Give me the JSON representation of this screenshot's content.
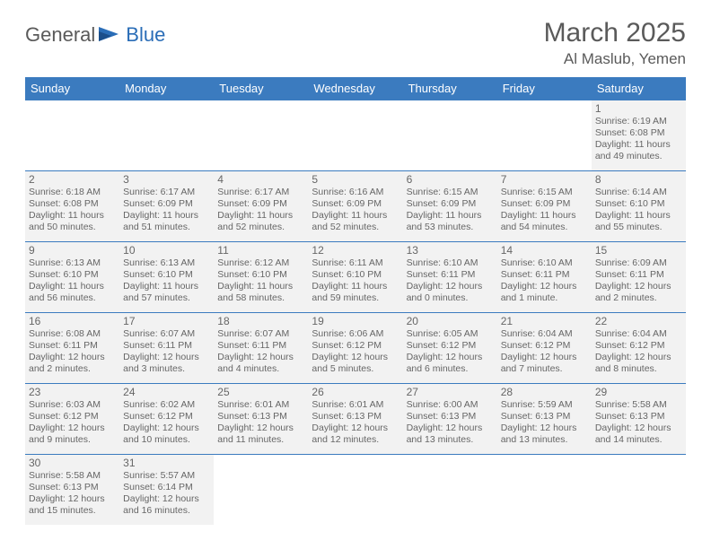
{
  "brand": {
    "part1": "General",
    "part2": "Blue"
  },
  "title": "March 2025",
  "location": "Al Maslub, Yemen",
  "colors": {
    "header_bg": "#3b7bbf",
    "header_fg": "#ffffff",
    "border": "#3b7bbf",
    "shaded_bg": "#f2f2f2",
    "text": "#666666"
  },
  "weekdays": [
    "Sunday",
    "Monday",
    "Tuesday",
    "Wednesday",
    "Thursday",
    "Friday",
    "Saturday"
  ],
  "weeks": [
    [
      {
        "blank": true
      },
      {
        "blank": true
      },
      {
        "blank": true
      },
      {
        "blank": true
      },
      {
        "blank": true
      },
      {
        "blank": true
      },
      {
        "day": "1",
        "sunrise": "Sunrise: 6:19 AM",
        "sunset": "Sunset: 6:08 PM",
        "daylight1": "Daylight: 11 hours",
        "daylight2": "and 49 minutes."
      }
    ],
    [
      {
        "day": "2",
        "sunrise": "Sunrise: 6:18 AM",
        "sunset": "Sunset: 6:08 PM",
        "daylight1": "Daylight: 11 hours",
        "daylight2": "and 50 minutes."
      },
      {
        "day": "3",
        "sunrise": "Sunrise: 6:17 AM",
        "sunset": "Sunset: 6:09 PM",
        "daylight1": "Daylight: 11 hours",
        "daylight2": "and 51 minutes."
      },
      {
        "day": "4",
        "sunrise": "Sunrise: 6:17 AM",
        "sunset": "Sunset: 6:09 PM",
        "daylight1": "Daylight: 11 hours",
        "daylight2": "and 52 minutes."
      },
      {
        "day": "5",
        "sunrise": "Sunrise: 6:16 AM",
        "sunset": "Sunset: 6:09 PM",
        "daylight1": "Daylight: 11 hours",
        "daylight2": "and 52 minutes."
      },
      {
        "day": "6",
        "sunrise": "Sunrise: 6:15 AM",
        "sunset": "Sunset: 6:09 PM",
        "daylight1": "Daylight: 11 hours",
        "daylight2": "and 53 minutes."
      },
      {
        "day": "7",
        "sunrise": "Sunrise: 6:15 AM",
        "sunset": "Sunset: 6:09 PM",
        "daylight1": "Daylight: 11 hours",
        "daylight2": "and 54 minutes."
      },
      {
        "day": "8",
        "sunrise": "Sunrise: 6:14 AM",
        "sunset": "Sunset: 6:10 PM",
        "daylight1": "Daylight: 11 hours",
        "daylight2": "and 55 minutes."
      }
    ],
    [
      {
        "day": "9",
        "sunrise": "Sunrise: 6:13 AM",
        "sunset": "Sunset: 6:10 PM",
        "daylight1": "Daylight: 11 hours",
        "daylight2": "and 56 minutes."
      },
      {
        "day": "10",
        "sunrise": "Sunrise: 6:13 AM",
        "sunset": "Sunset: 6:10 PM",
        "daylight1": "Daylight: 11 hours",
        "daylight2": "and 57 minutes."
      },
      {
        "day": "11",
        "sunrise": "Sunrise: 6:12 AM",
        "sunset": "Sunset: 6:10 PM",
        "daylight1": "Daylight: 11 hours",
        "daylight2": "and 58 minutes."
      },
      {
        "day": "12",
        "sunrise": "Sunrise: 6:11 AM",
        "sunset": "Sunset: 6:10 PM",
        "daylight1": "Daylight: 11 hours",
        "daylight2": "and 59 minutes."
      },
      {
        "day": "13",
        "sunrise": "Sunrise: 6:10 AM",
        "sunset": "Sunset: 6:11 PM",
        "daylight1": "Daylight: 12 hours",
        "daylight2": "and 0 minutes."
      },
      {
        "day": "14",
        "sunrise": "Sunrise: 6:10 AM",
        "sunset": "Sunset: 6:11 PM",
        "daylight1": "Daylight: 12 hours",
        "daylight2": "and 1 minute."
      },
      {
        "day": "15",
        "sunrise": "Sunrise: 6:09 AM",
        "sunset": "Sunset: 6:11 PM",
        "daylight1": "Daylight: 12 hours",
        "daylight2": "and 2 minutes."
      }
    ],
    [
      {
        "day": "16",
        "sunrise": "Sunrise: 6:08 AM",
        "sunset": "Sunset: 6:11 PM",
        "daylight1": "Daylight: 12 hours",
        "daylight2": "and 2 minutes."
      },
      {
        "day": "17",
        "sunrise": "Sunrise: 6:07 AM",
        "sunset": "Sunset: 6:11 PM",
        "daylight1": "Daylight: 12 hours",
        "daylight2": "and 3 minutes."
      },
      {
        "day": "18",
        "sunrise": "Sunrise: 6:07 AM",
        "sunset": "Sunset: 6:11 PM",
        "daylight1": "Daylight: 12 hours",
        "daylight2": "and 4 minutes."
      },
      {
        "day": "19",
        "sunrise": "Sunrise: 6:06 AM",
        "sunset": "Sunset: 6:12 PM",
        "daylight1": "Daylight: 12 hours",
        "daylight2": "and 5 minutes."
      },
      {
        "day": "20",
        "sunrise": "Sunrise: 6:05 AM",
        "sunset": "Sunset: 6:12 PM",
        "daylight1": "Daylight: 12 hours",
        "daylight2": "and 6 minutes."
      },
      {
        "day": "21",
        "sunrise": "Sunrise: 6:04 AM",
        "sunset": "Sunset: 6:12 PM",
        "daylight1": "Daylight: 12 hours",
        "daylight2": "and 7 minutes."
      },
      {
        "day": "22",
        "sunrise": "Sunrise: 6:04 AM",
        "sunset": "Sunset: 6:12 PM",
        "daylight1": "Daylight: 12 hours",
        "daylight2": "and 8 minutes."
      }
    ],
    [
      {
        "day": "23",
        "sunrise": "Sunrise: 6:03 AM",
        "sunset": "Sunset: 6:12 PM",
        "daylight1": "Daylight: 12 hours",
        "daylight2": "and 9 minutes."
      },
      {
        "day": "24",
        "sunrise": "Sunrise: 6:02 AM",
        "sunset": "Sunset: 6:12 PM",
        "daylight1": "Daylight: 12 hours",
        "daylight2": "and 10 minutes."
      },
      {
        "day": "25",
        "sunrise": "Sunrise: 6:01 AM",
        "sunset": "Sunset: 6:13 PM",
        "daylight1": "Daylight: 12 hours",
        "daylight2": "and 11 minutes."
      },
      {
        "day": "26",
        "sunrise": "Sunrise: 6:01 AM",
        "sunset": "Sunset: 6:13 PM",
        "daylight1": "Daylight: 12 hours",
        "daylight2": "and 12 minutes."
      },
      {
        "day": "27",
        "sunrise": "Sunrise: 6:00 AM",
        "sunset": "Sunset: 6:13 PM",
        "daylight1": "Daylight: 12 hours",
        "daylight2": "and 13 minutes."
      },
      {
        "day": "28",
        "sunrise": "Sunrise: 5:59 AM",
        "sunset": "Sunset: 6:13 PM",
        "daylight1": "Daylight: 12 hours",
        "daylight2": "and 13 minutes."
      },
      {
        "day": "29",
        "sunrise": "Sunrise: 5:58 AM",
        "sunset": "Sunset: 6:13 PM",
        "daylight1": "Daylight: 12 hours",
        "daylight2": "and 14 minutes."
      }
    ],
    [
      {
        "day": "30",
        "sunrise": "Sunrise: 5:58 AM",
        "sunset": "Sunset: 6:13 PM",
        "daylight1": "Daylight: 12 hours",
        "daylight2": "and 15 minutes."
      },
      {
        "day": "31",
        "sunrise": "Sunrise: 5:57 AM",
        "sunset": "Sunset: 6:14 PM",
        "daylight1": "Daylight: 12 hours",
        "daylight2": "and 16 minutes."
      },
      {
        "blank": true
      },
      {
        "blank": true
      },
      {
        "blank": true
      },
      {
        "blank": true
      },
      {
        "blank": true
      }
    ]
  ]
}
